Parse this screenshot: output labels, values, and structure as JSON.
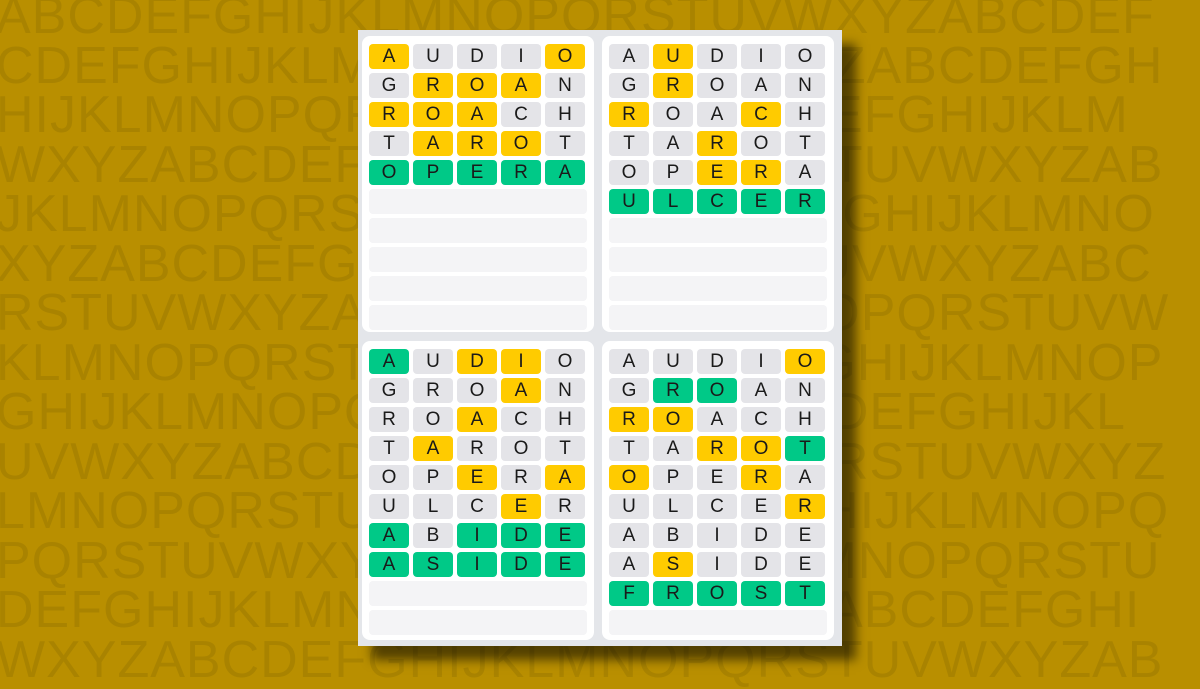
{
  "background_letters": [
    "ABCDEFGHIJKLMNOPQRSTUVWXYZABCDEF",
    "CDEFGHIJKLMNOPQRSTUVWXYZABCDEFGH",
    "HIJKLMNOPQRSTUVWXYZABCDEFGHIJKLM",
    "WXYZABCDEFGHIJKLMNOPQRSTUVWXYZAB",
    "JKLMNOPQRSTUVWXYZABCDEFGHIJKLMNO",
    "XYZABCDEFGHIJKLMNOPQRSTUVWXYZABC",
    "RSTUVWXYZABCDEFGHIJKLMNOPQRSTUVW",
    "KLMNOPQRSTUVWXYZABCDEFGHIJKLMNOP",
    "GHIJKLMNOPQRSTUVWXYZABCDEFGHIJKL",
    "UVWXYZABCDEFGHIJKLMNOPQRSTUVWXYZ",
    "LMNOPQRSTUVWXYZABCDEFGHIJKLMNOPQ",
    "PQRSTUVWXYZABCDEFGHIJKLMNOPQRSTU",
    "DEFGHIJKLMNOPQRSTUVWXYZABCDEFGHI",
    "WXYZABCDEFGHIJKLMNOPQRSTUVWXYZAB"
  ],
  "colors": {
    "correct": "#00c987",
    "present": "#ffcb00",
    "absent": "#e4e4e8",
    "empty": "#f4f4f6",
    "background": "#b98f00"
  },
  "total_rows": 10,
  "boards": [
    {
      "guesses": [
        {
          "word": "AUDIO",
          "marks": "yxxxy"
        },
        {
          "word": "GROAN",
          "marks": "xyyyx"
        },
        {
          "word": "ROACH",
          "marks": "yyyxx"
        },
        {
          "word": "TAROT",
          "marks": "xyyyx"
        },
        {
          "word": "OPERA",
          "marks": "ggggg"
        }
      ]
    },
    {
      "guesses": [
        {
          "word": "AUDIO",
          "marks": "xyxxx"
        },
        {
          "word": "GROAN",
          "marks": "xyxxx"
        },
        {
          "word": "ROACH",
          "marks": "yxxyx"
        },
        {
          "word": "TAROT",
          "marks": "xxyxx"
        },
        {
          "word": "OPERA",
          "marks": "xxyyx"
        },
        {
          "word": "ULCER",
          "marks": "ggggg"
        }
      ]
    },
    {
      "guesses": [
        {
          "word": "AUDIO",
          "marks": "gxyyx"
        },
        {
          "word": "GROAN",
          "marks": "xxxyx"
        },
        {
          "word": "ROACH",
          "marks": "xxyxx"
        },
        {
          "word": "TAROT",
          "marks": "xyxxx"
        },
        {
          "word": "OPERA",
          "marks": "xxyxy"
        },
        {
          "word": "ULCER",
          "marks": "xxxyx"
        },
        {
          "word": "ABIDE",
          "marks": "gxggg"
        },
        {
          "word": "ASIDE",
          "marks": "ggggg"
        }
      ]
    },
    {
      "guesses": [
        {
          "word": "AUDIO",
          "marks": "xxxxy"
        },
        {
          "word": "GROAN",
          "marks": "xggxx"
        },
        {
          "word": "ROACH",
          "marks": "yyxxx"
        },
        {
          "word": "TAROT",
          "marks": "xxyyg"
        },
        {
          "word": "OPERA",
          "marks": "yxxyx"
        },
        {
          "word": "ULCER",
          "marks": "xxxxy"
        },
        {
          "word": "ABIDE",
          "marks": "xxxxx"
        },
        {
          "word": "ASIDE",
          "marks": "xyxxx"
        },
        {
          "word": "FROST",
          "marks": "ggggg"
        }
      ]
    }
  ]
}
